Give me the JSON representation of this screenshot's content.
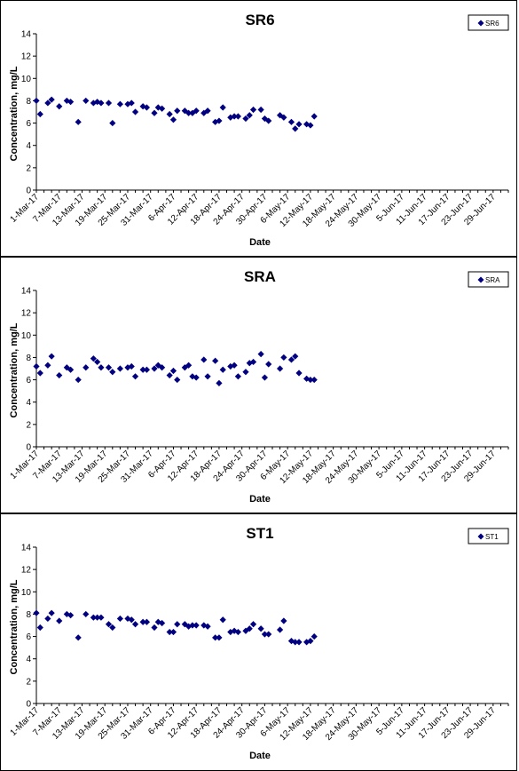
{
  "chart_data": [
    {
      "type": "scatter",
      "title": "SR6",
      "xlabel": "Date",
      "ylabel": "Concentration, mg/L",
      "ylim": [
        0,
        14
      ],
      "yticks": [
        "0",
        "2",
        "4",
        "6",
        "8",
        "10",
        "12",
        "14"
      ],
      "xticks": [
        "1-Mar-17",
        "7-Mar-17",
        "13-Mar-17",
        "19-Mar-17",
        "25-Mar-17",
        "31-Mar-17",
        "6-Apr-17",
        "12-Apr-17",
        "18-Apr-17",
        "24-Apr-17",
        "30-Apr-17",
        "6-May-17",
        "12-May-17",
        "18-May-17",
        "24-May-17",
        "30-May-17",
        "5-Jun-17",
        "11-Jun-17",
        "17-Jun-17",
        "23-Jun-17",
        "29-Jun-17"
      ],
      "xlim": [
        "2017-03-01",
        "2017-07-03"
      ],
      "legend": "top-right",
      "marker_color": "#000080",
      "series": [
        {
          "name": "SR6",
          "points": [
            {
              "x": "2017-03-01",
              "y": 8.0
            },
            {
              "x": "2017-03-02",
              "y": 6.8
            },
            {
              "x": "2017-03-04",
              "y": 7.8
            },
            {
              "x": "2017-03-05",
              "y": 8.1
            },
            {
              "x": "2017-03-07",
              "y": 7.5
            },
            {
              "x": "2017-03-09",
              "y": 8.0
            },
            {
              "x": "2017-03-10",
              "y": 7.9
            },
            {
              "x": "2017-03-12",
              "y": 6.1
            },
            {
              "x": "2017-03-14",
              "y": 8.0
            },
            {
              "x": "2017-03-16",
              "y": 7.8
            },
            {
              "x": "2017-03-17",
              "y": 7.9
            },
            {
              "x": "2017-03-18",
              "y": 7.8
            },
            {
              "x": "2017-03-20",
              "y": 7.8
            },
            {
              "x": "2017-03-21",
              "y": 6.0
            },
            {
              "x": "2017-03-23",
              "y": 7.7
            },
            {
              "x": "2017-03-25",
              "y": 7.7
            },
            {
              "x": "2017-03-26",
              "y": 7.8
            },
            {
              "x": "2017-03-27",
              "y": 7.0
            },
            {
              "x": "2017-03-29",
              "y": 7.5
            },
            {
              "x": "2017-03-30",
              "y": 7.4
            },
            {
              "x": "2017-04-01",
              "y": 6.9
            },
            {
              "x": "2017-04-02",
              "y": 7.4
            },
            {
              "x": "2017-04-03",
              "y": 7.3
            },
            {
              "x": "2017-04-05",
              "y": 6.8
            },
            {
              "x": "2017-04-06",
              "y": 6.3
            },
            {
              "x": "2017-04-07",
              "y": 7.1
            },
            {
              "x": "2017-04-09",
              "y": 7.1
            },
            {
              "x": "2017-04-10",
              "y": 6.9
            },
            {
              "x": "2017-04-11",
              "y": 6.9
            },
            {
              "x": "2017-04-12",
              "y": 7.1
            },
            {
              "x": "2017-04-14",
              "y": 6.9
            },
            {
              "x": "2017-04-15",
              "y": 7.1
            },
            {
              "x": "2017-04-17",
              "y": 6.1
            },
            {
              "x": "2017-04-18",
              "y": 6.2
            },
            {
              "x": "2017-04-19",
              "y": 7.4
            },
            {
              "x": "2017-04-21",
              "y": 6.5
            },
            {
              "x": "2017-04-22",
              "y": 6.6
            },
            {
              "x": "2017-04-23",
              "y": 6.6
            },
            {
              "x": "2017-04-25",
              "y": 6.4
            },
            {
              "x": "2017-04-26",
              "y": 6.7
            },
            {
              "x": "2017-04-27",
              "y": 7.2
            },
            {
              "x": "2017-04-29",
              "y": 7.2
            },
            {
              "x": "2017-04-30",
              "y": 6.4
            },
            {
              "x": "2017-05-01",
              "y": 6.2
            },
            {
              "x": "2017-05-04",
              "y": 6.7
            },
            {
              "x": "2017-05-05",
              "y": 6.5
            },
            {
              "x": "2017-05-07",
              "y": 6.1
            },
            {
              "x": "2017-05-08",
              "y": 5.5
            },
            {
              "x": "2017-05-09",
              "y": 5.9
            },
            {
              "x": "2017-05-11",
              "y": 5.9
            },
            {
              "x": "2017-05-12",
              "y": 5.8
            },
            {
              "x": "2017-05-13",
              "y": 6.6
            }
          ]
        }
      ]
    },
    {
      "type": "scatter",
      "title": "SRA",
      "xlabel": "Date",
      "ylabel": "Concentration, mg/L",
      "ylim": [
        0,
        14
      ],
      "yticks": [
        "0",
        "2",
        "4",
        "6",
        "8",
        "10",
        "12",
        "14"
      ],
      "xticks": [
        "1-Mar-17",
        "7-Mar-17",
        "13-Mar-17",
        "19-Mar-17",
        "25-Mar-17",
        "31-Mar-17",
        "6-Apr-17",
        "12-Apr-17",
        "18-Apr-17",
        "24-Apr-17",
        "30-Apr-17",
        "6-May-17",
        "12-May-17",
        "18-May-17",
        "24-May-17",
        "30-May-17",
        "5-Jun-17",
        "11-Jun-17",
        "17-Jun-17",
        "23-Jun-17",
        "29-Jun-17"
      ],
      "xlim": [
        "2017-03-01",
        "2017-07-03"
      ],
      "legend": "top-right",
      "marker_color": "#000080",
      "series": [
        {
          "name": "SRA",
          "points": [
            {
              "x": "2017-03-01",
              "y": 7.2
            },
            {
              "x": "2017-03-02",
              "y": 6.6
            },
            {
              "x": "2017-03-04",
              "y": 7.3
            },
            {
              "x": "2017-03-05",
              "y": 8.1
            },
            {
              "x": "2017-03-07",
              "y": 6.4
            },
            {
              "x": "2017-03-09",
              "y": 7.1
            },
            {
              "x": "2017-03-10",
              "y": 6.9
            },
            {
              "x": "2017-03-12",
              "y": 6.0
            },
            {
              "x": "2017-03-14",
              "y": 7.1
            },
            {
              "x": "2017-03-16",
              "y": 7.9
            },
            {
              "x": "2017-03-17",
              "y": 7.6
            },
            {
              "x": "2017-03-18",
              "y": 7.1
            },
            {
              "x": "2017-03-20",
              "y": 7.1
            },
            {
              "x": "2017-03-21",
              "y": 6.7
            },
            {
              "x": "2017-03-23",
              "y": 7.0
            },
            {
              "x": "2017-03-25",
              "y": 7.1
            },
            {
              "x": "2017-03-26",
              "y": 7.2
            },
            {
              "x": "2017-03-27",
              "y": 6.3
            },
            {
              "x": "2017-03-29",
              "y": 6.9
            },
            {
              "x": "2017-03-30",
              "y": 6.9
            },
            {
              "x": "2017-04-01",
              "y": 7.0
            },
            {
              "x": "2017-04-02",
              "y": 7.3
            },
            {
              "x": "2017-04-03",
              "y": 7.1
            },
            {
              "x": "2017-04-05",
              "y": 6.4
            },
            {
              "x": "2017-04-06",
              "y": 6.8
            },
            {
              "x": "2017-04-07",
              "y": 6.0
            },
            {
              "x": "2017-04-09",
              "y": 7.1
            },
            {
              "x": "2017-04-10",
              "y": 7.3
            },
            {
              "x": "2017-04-11",
              "y": 6.3
            },
            {
              "x": "2017-04-12",
              "y": 6.2
            },
            {
              "x": "2017-04-14",
              "y": 7.8
            },
            {
              "x": "2017-04-15",
              "y": 6.3
            },
            {
              "x": "2017-04-17",
              "y": 7.7
            },
            {
              "x": "2017-04-18",
              "y": 5.7
            },
            {
              "x": "2017-04-19",
              "y": 6.9
            },
            {
              "x": "2017-04-21",
              "y": 7.2
            },
            {
              "x": "2017-04-22",
              "y": 7.3
            },
            {
              "x": "2017-04-23",
              "y": 6.3
            },
            {
              "x": "2017-04-25",
              "y": 6.7
            },
            {
              "x": "2017-04-26",
              "y": 7.5
            },
            {
              "x": "2017-04-27",
              "y": 7.6
            },
            {
              "x": "2017-04-29",
              "y": 8.3
            },
            {
              "x": "2017-04-30",
              "y": 6.2
            },
            {
              "x": "2017-05-01",
              "y": 7.4
            },
            {
              "x": "2017-05-04",
              "y": 7.0
            },
            {
              "x": "2017-05-05",
              "y": 8.0
            },
            {
              "x": "2017-05-07",
              "y": 7.8
            },
            {
              "x": "2017-05-08",
              "y": 8.1
            },
            {
              "x": "2017-05-09",
              "y": 6.6
            },
            {
              "x": "2017-05-11",
              "y": 6.1
            },
            {
              "x": "2017-05-12",
              "y": 6.0
            },
            {
              "x": "2017-05-13",
              "y": 6.0
            }
          ]
        }
      ]
    },
    {
      "type": "scatter",
      "title": "ST1",
      "xlabel": "Date",
      "ylabel": "Concentration, mg/L",
      "ylim": [
        0,
        14
      ],
      "yticks": [
        "0",
        "2",
        "4",
        "6",
        "8",
        "10",
        "12",
        "14"
      ],
      "xticks": [
        "1-Mar-17",
        "7-Mar-17",
        "13-Mar-17",
        "19-Mar-17",
        "25-Mar-17",
        "31-Mar-17",
        "6-Apr-17",
        "12-Apr-17",
        "18-Apr-17",
        "24-Apr-17",
        "30-Apr-17",
        "6-May-17",
        "12-May-17",
        "18-May-17",
        "24-May-17",
        "30-May-17",
        "5-Jun-17",
        "11-Jun-17",
        "17-Jun-17",
        "23-Jun-17",
        "29-Jun-17"
      ],
      "xlim": [
        "2017-03-01",
        "2017-07-03"
      ],
      "legend": "top-right",
      "marker_color": "#000080",
      "series": [
        {
          "name": "ST1",
          "points": [
            {
              "x": "2017-03-01",
              "y": 8.1
            },
            {
              "x": "2017-03-02",
              "y": 6.8
            },
            {
              "x": "2017-03-04",
              "y": 7.6
            },
            {
              "x": "2017-03-05",
              "y": 8.1
            },
            {
              "x": "2017-03-07",
              "y": 7.4
            },
            {
              "x": "2017-03-09",
              "y": 8.0
            },
            {
              "x": "2017-03-10",
              "y": 7.9
            },
            {
              "x": "2017-03-12",
              "y": 5.9
            },
            {
              "x": "2017-03-14",
              "y": 8.0
            },
            {
              "x": "2017-03-16",
              "y": 7.7
            },
            {
              "x": "2017-03-17",
              "y": 7.7
            },
            {
              "x": "2017-03-18",
              "y": 7.7
            },
            {
              "x": "2017-03-20",
              "y": 7.1
            },
            {
              "x": "2017-03-21",
              "y": 6.8
            },
            {
              "x": "2017-03-23",
              "y": 7.6
            },
            {
              "x": "2017-03-25",
              "y": 7.6
            },
            {
              "x": "2017-03-26",
              "y": 7.5
            },
            {
              "x": "2017-03-27",
              "y": 7.1
            },
            {
              "x": "2017-03-29",
              "y": 7.3
            },
            {
              "x": "2017-03-30",
              "y": 7.3
            },
            {
              "x": "2017-04-01",
              "y": 6.8
            },
            {
              "x": "2017-04-02",
              "y": 7.3
            },
            {
              "x": "2017-04-03",
              "y": 7.2
            },
            {
              "x": "2017-04-05",
              "y": 6.4
            },
            {
              "x": "2017-04-06",
              "y": 6.4
            },
            {
              "x": "2017-04-07",
              "y": 7.1
            },
            {
              "x": "2017-04-09",
              "y": 7.1
            },
            {
              "x": "2017-04-10",
              "y": 6.9
            },
            {
              "x": "2017-04-11",
              "y": 7.0
            },
            {
              "x": "2017-04-12",
              "y": 7.0
            },
            {
              "x": "2017-04-14",
              "y": 7.0
            },
            {
              "x": "2017-04-15",
              "y": 6.9
            },
            {
              "x": "2017-04-17",
              "y": 5.9
            },
            {
              "x": "2017-04-18",
              "y": 5.9
            },
            {
              "x": "2017-04-19",
              "y": 7.5
            },
            {
              "x": "2017-04-21",
              "y": 6.4
            },
            {
              "x": "2017-04-22",
              "y": 6.5
            },
            {
              "x": "2017-04-23",
              "y": 6.4
            },
            {
              "x": "2017-04-25",
              "y": 6.5
            },
            {
              "x": "2017-04-26",
              "y": 6.7
            },
            {
              "x": "2017-04-27",
              "y": 7.1
            },
            {
              "x": "2017-04-29",
              "y": 6.7
            },
            {
              "x": "2017-04-30",
              "y": 6.2
            },
            {
              "x": "2017-05-01",
              "y": 6.2
            },
            {
              "x": "2017-05-04",
              "y": 6.6
            },
            {
              "x": "2017-05-05",
              "y": 7.4
            },
            {
              "x": "2017-05-07",
              "y": 5.6
            },
            {
              "x": "2017-05-08",
              "y": 5.5
            },
            {
              "x": "2017-05-09",
              "y": 5.5
            },
            {
              "x": "2017-05-11",
              "y": 5.5
            },
            {
              "x": "2017-05-12",
              "y": 5.6
            },
            {
              "x": "2017-05-13",
              "y": 6.0
            }
          ]
        }
      ]
    }
  ]
}
